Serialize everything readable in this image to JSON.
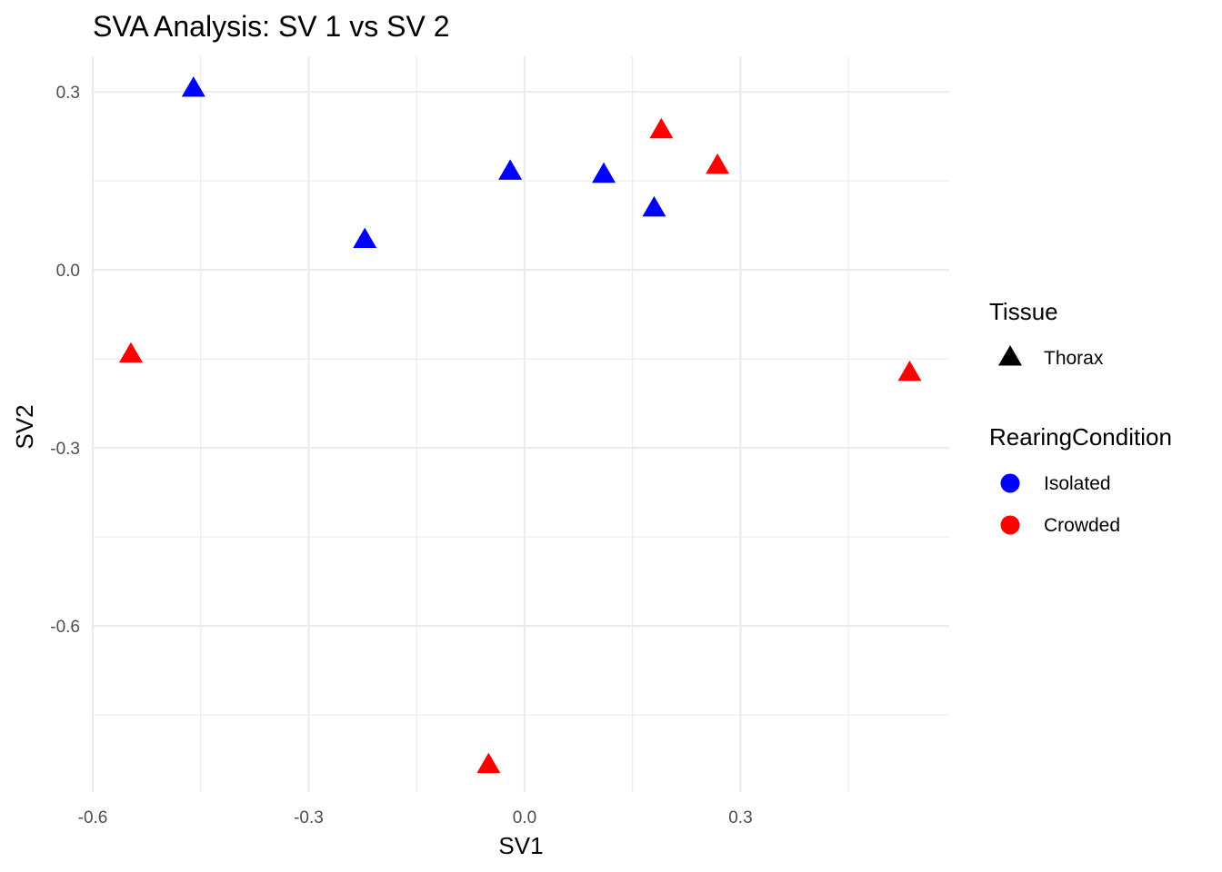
{
  "chart_data": {
    "type": "scatter",
    "title": "SVA Analysis: SV 1  vs SV 2",
    "xlabel": "SV1",
    "ylabel": "SV2",
    "xlim": [
      -0.6,
      0.59
    ],
    "ylim": [
      -0.88,
      0.36
    ],
    "x_ticks": [
      -0.6,
      -0.3,
      0.0,
      0.3
    ],
    "x_tick_labels": [
      "-0.6",
      "-0.3",
      "0.0",
      "0.3"
    ],
    "y_ticks": [
      0.3,
      0.0,
      -0.3,
      -0.6
    ],
    "y_tick_labels": [
      "0.3",
      "0.0",
      "-0.3",
      "-0.6"
    ],
    "grid": true,
    "legend_position": "right",
    "legends": [
      {
        "title": "Tissue",
        "items": [
          {
            "label": "Thorax",
            "shape": "triangle",
            "color": "#000000"
          }
        ]
      },
      {
        "title": "RearingCondition",
        "items": [
          {
            "label": "Isolated",
            "shape": "circle",
            "color": "#0000ff"
          },
          {
            "label": "Crowded",
            "shape": "circle",
            "color": "#ff0000"
          }
        ]
      }
    ],
    "series": [
      {
        "name": "Isolated",
        "color": "#0000ff",
        "shape": "triangle",
        "points": [
          {
            "x": -0.46,
            "y": 0.305
          },
          {
            "x": -0.222,
            "y": 0.05
          },
          {
            "x": -0.02,
            "y": 0.165
          },
          {
            "x": 0.11,
            "y": 0.16
          },
          {
            "x": 0.18,
            "y": 0.103
          }
        ]
      },
      {
        "name": "Crowded",
        "color": "#ff0000",
        "shape": "triangle",
        "points": [
          {
            "x": -0.547,
            "y": -0.143
          },
          {
            "x": 0.19,
            "y": 0.235
          },
          {
            "x": 0.268,
            "y": 0.175
          },
          {
            "x": 0.535,
            "y": -0.174
          },
          {
            "x": -0.05,
            "y": -0.835
          }
        ]
      }
    ]
  }
}
